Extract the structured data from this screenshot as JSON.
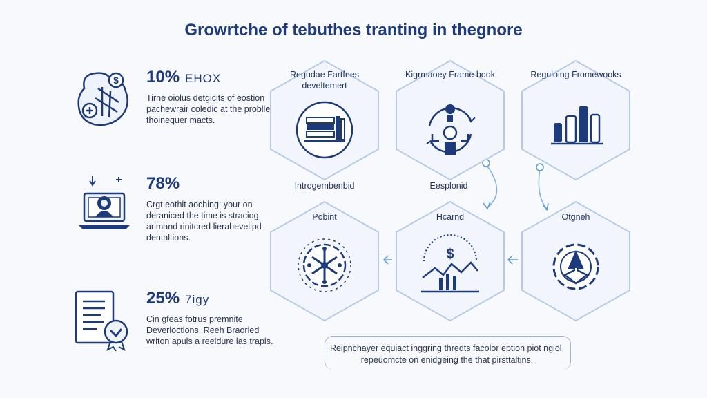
{
  "title": "Growrtche of tebuthes tranting in thegnore",
  "stats": [
    {
      "pct": "10%",
      "tag": "EHOX",
      "desc": "Tirne oiolus detgicits of eostion pachewrair coledic at the problles thoinequer macts."
    },
    {
      "pct": "78%",
      "tag": "",
      "desc": "Crgt eothit aoching: your on deraniced the time is straciog, arimand rinitcred lierahevelipd dentaltions."
    },
    {
      "pct": "25%",
      "tag": "7igy",
      "desc": "Cin gfeas fotrus premnite Deverloctions, Reeh Braoried writon apuls a reeldure las trapis."
    }
  ],
  "hexes": {
    "top": [
      {
        "label": "Regudae Fartfnes develtemert",
        "icon": "document-shelf-icon"
      },
      {
        "label": "Kigrmaoey Frame book",
        "icon": "cycle-people-icon"
      },
      {
        "label": "Reguloing Fromewooks",
        "icon": "bar-stack-icon"
      }
    ],
    "mid_labels": [
      "Introgembenbid",
      "Eesplonid"
    ],
    "bottom": [
      {
        "label": "Pobint",
        "icon": "gear-network-icon"
      },
      {
        "label": "Hcarnd",
        "icon": "dollar-chart-icon"
      },
      {
        "label": "Otgneh",
        "icon": "gear-arrows-icon"
      }
    ]
  },
  "footer": "Reipnchayer equiact inggring thredts facolor eption piot ngiol, repeuomcte on enidgeing the that pirsttaltins.",
  "colors": {
    "accent": "#1d3b7a",
    "hex_stroke": "#b7cbe6",
    "connector": "#7fb2e0"
  }
}
